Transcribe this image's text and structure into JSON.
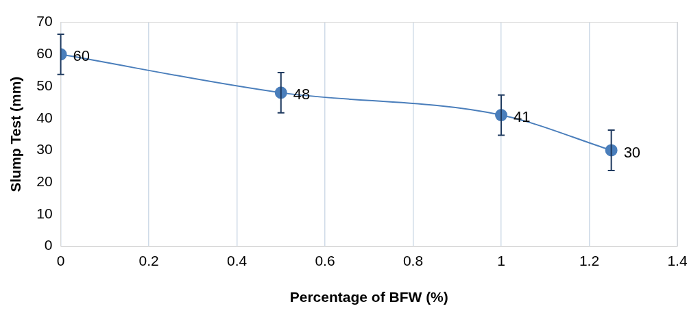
{
  "chart_data": {
    "type": "line",
    "xlabel": "Percentage of BFW (%)",
    "ylabel": "Slump Test (mm)",
    "x": [
      0,
      0.5,
      1,
      1.25
    ],
    "series": [
      {
        "color": "#4a7ebb",
        "values": [
          60,
          48,
          41,
          30
        ],
        "errors": [
          6.3,
          6.3,
          6.3,
          6.3
        ]
      }
    ],
    "xlim": [
      0,
      1.4
    ],
    "xticks": [
      0,
      0.2,
      0.4,
      0.6,
      0.8,
      1,
      1.2,
      1.4
    ],
    "ylim": [
      0,
      70
    ],
    "yticks": [
      0,
      10,
      20,
      30,
      40,
      50,
      60,
      70
    ],
    "grid": "x",
    "marker": "circle",
    "line_style": "solid",
    "data_labels": true,
    "legend": false
  }
}
